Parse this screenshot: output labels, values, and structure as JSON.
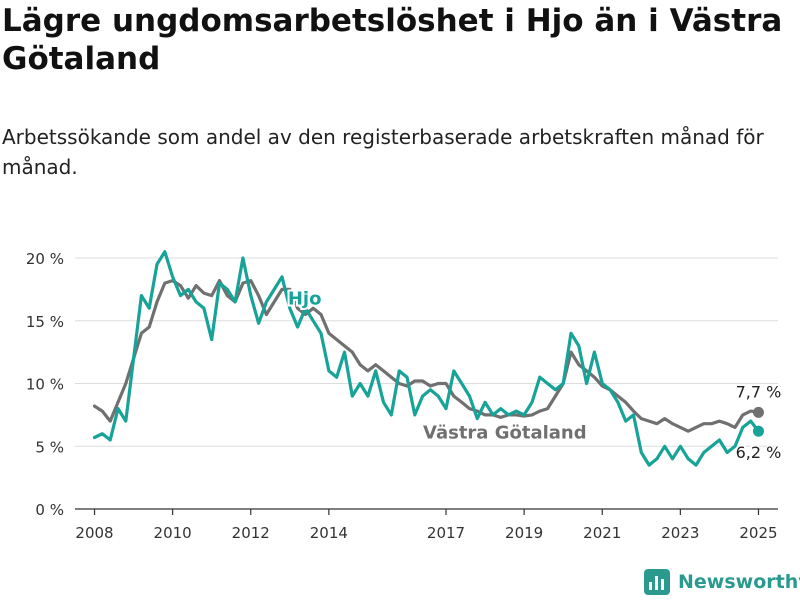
{
  "title": "Lägre ungdomsarbetslöshet i Hjo än i Västra Götaland",
  "subtitle": "Arbetssökande som andel av den registerbaserade arbetskraften månad för månad.",
  "brand": {
    "name": "Newsworthy",
    "icon": "bar-chart-logo-icon"
  },
  "colors": {
    "hjo": "#17a398",
    "vg": "#707070",
    "grid": "#dddddd",
    "axis": "#333333",
    "brand": "#2b9a8e"
  },
  "chart_data": {
    "type": "line",
    "title": "Lägre ungdomsarbetslöshet i Hjo än i Västra Götaland",
    "xlabel": "",
    "ylabel": "",
    "ylim": [
      0,
      20
    ],
    "xlim": [
      2007.5,
      2025.5
    ],
    "x_ticks": [
      2008,
      2010,
      2012,
      2014,
      2017,
      2019,
      2021,
      2023,
      2025
    ],
    "x_tick_labels": [
      "2008",
      "2010",
      "2012",
      "2014",
      "2017",
      "2019",
      "2021",
      "2023",
      "2025"
    ],
    "y_ticks": [
      0,
      5,
      10,
      15,
      20
    ],
    "y_tick_labels": [
      "0 %",
      "5 %",
      "10 %",
      "15 %",
      "20 %"
    ],
    "grid": true,
    "series": [
      {
        "name": "Västra Götaland",
        "label": "Västra Götaland",
        "end_label": "7,7 %",
        "x": [
          2008.0,
          2008.2,
          2008.4,
          2008.6,
          2008.8,
          2009.0,
          2009.2,
          2009.4,
          2009.6,
          2009.8,
          2010.0,
          2010.2,
          2010.4,
          2010.6,
          2010.8,
          2011.0,
          2011.2,
          2011.4,
          2011.6,
          2011.8,
          2012.0,
          2012.2,
          2012.4,
          2012.6,
          2012.8,
          2013.0,
          2013.2,
          2013.4,
          2013.6,
          2013.8,
          2014.0,
          2014.2,
          2014.4,
          2014.6,
          2014.8,
          2015.0,
          2015.2,
          2015.4,
          2015.6,
          2015.8,
          2016.0,
          2016.2,
          2016.4,
          2016.6,
          2016.8,
          2017.0,
          2017.2,
          2017.4,
          2017.6,
          2017.8,
          2018.0,
          2018.2,
          2018.4,
          2018.6,
          2018.8,
          2019.0,
          2019.2,
          2019.4,
          2019.6,
          2019.8,
          2020.0,
          2020.2,
          2020.4,
          2020.6,
          2020.8,
          2021.0,
          2021.2,
          2021.4,
          2021.6,
          2021.8,
          2022.0,
          2022.2,
          2022.4,
          2022.6,
          2022.8,
          2023.0,
          2023.2,
          2023.4,
          2023.6,
          2023.8,
          2024.0,
          2024.2,
          2024.4,
          2024.6,
          2024.8,
          2025.0
        ],
        "values": [
          8.2,
          7.8,
          7.0,
          8.5,
          10.0,
          12.0,
          14.0,
          14.5,
          16.5,
          18.0,
          18.2,
          17.8,
          16.8,
          17.8,
          17.2,
          17.0,
          18.2,
          17.0,
          16.5,
          18.0,
          18.2,
          17.0,
          15.5,
          16.5,
          17.5,
          17.5,
          16.0,
          15.5,
          16.0,
          15.5,
          14.0,
          13.5,
          13.0,
          12.5,
          11.5,
          11.0,
          11.5,
          11.0,
          10.5,
          10.0,
          9.8,
          10.2,
          10.2,
          9.8,
          10.0,
          10.0,
          9.0,
          8.5,
          8.0,
          7.8,
          7.5,
          7.5,
          7.3,
          7.5,
          7.5,
          7.4,
          7.5,
          7.8,
          8.0,
          9.0,
          10.0,
          12.5,
          11.5,
          11.0,
          10.5,
          9.8,
          9.5,
          9.0,
          8.5,
          7.8,
          7.2,
          7.0,
          6.8,
          7.2,
          6.8,
          6.5,
          6.2,
          6.5,
          6.8,
          6.8,
          7.0,
          6.8,
          6.5,
          7.5,
          7.8,
          7.7
        ]
      },
      {
        "name": "Hjo",
        "label": "Hjo",
        "end_label": "6,2 %",
        "x": [
          2008.0,
          2008.2,
          2008.4,
          2008.6,
          2008.8,
          2009.0,
          2009.2,
          2009.4,
          2009.6,
          2009.8,
          2010.0,
          2010.2,
          2010.4,
          2010.6,
          2010.8,
          2011.0,
          2011.2,
          2011.4,
          2011.6,
          2011.8,
          2012.0,
          2012.2,
          2012.4,
          2012.6,
          2012.8,
          2013.0,
          2013.2,
          2013.4,
          2013.6,
          2013.8,
          2014.0,
          2014.2,
          2014.4,
          2014.6,
          2014.8,
          2015.0,
          2015.2,
          2015.4,
          2015.6,
          2015.8,
          2016.0,
          2016.2,
          2016.4,
          2016.6,
          2016.8,
          2017.0,
          2017.2,
          2017.4,
          2017.6,
          2017.8,
          2018.0,
          2018.2,
          2018.4,
          2018.6,
          2018.8,
          2019.0,
          2019.2,
          2019.4,
          2019.6,
          2019.8,
          2020.0,
          2020.2,
          2020.4,
          2020.6,
          2020.8,
          2021.0,
          2021.2,
          2021.4,
          2021.6,
          2021.8,
          2022.0,
          2022.2,
          2022.4,
          2022.6,
          2022.8,
          2023.0,
          2023.2,
          2023.4,
          2023.6,
          2023.8,
          2024.0,
          2024.2,
          2024.4,
          2024.6,
          2024.8,
          2025.0
        ],
        "values": [
          5.7,
          6.0,
          5.5,
          8.0,
          7.0,
          12.0,
          17.0,
          16.0,
          19.5,
          20.5,
          18.5,
          17.0,
          17.5,
          16.5,
          16.0,
          13.5,
          18.0,
          17.5,
          16.5,
          20.0,
          17.0,
          14.8,
          16.5,
          17.5,
          18.5,
          16.0,
          14.5,
          16.0,
          15.0,
          14.0,
          11.0,
          10.5,
          12.5,
          9.0,
          10.0,
          9.0,
          11.0,
          8.5,
          7.5,
          11.0,
          10.5,
          7.5,
          9.0,
          9.5,
          9.0,
          8.0,
          11.0,
          10.0,
          9.0,
          7.2,
          8.5,
          7.5,
          8.0,
          7.5,
          7.8,
          7.5,
          8.5,
          10.5,
          10.0,
          9.5,
          10.0,
          14.0,
          13.0,
          10.0,
          12.5,
          10.0,
          9.5,
          8.5,
          7.0,
          7.5,
          4.5,
          3.5,
          4.0,
          5.0,
          4.0,
          5.0,
          4.0,
          3.5,
          4.5,
          5.0,
          5.5,
          4.5,
          5.0,
          6.5,
          7.0,
          6.2
        ]
      }
    ]
  }
}
